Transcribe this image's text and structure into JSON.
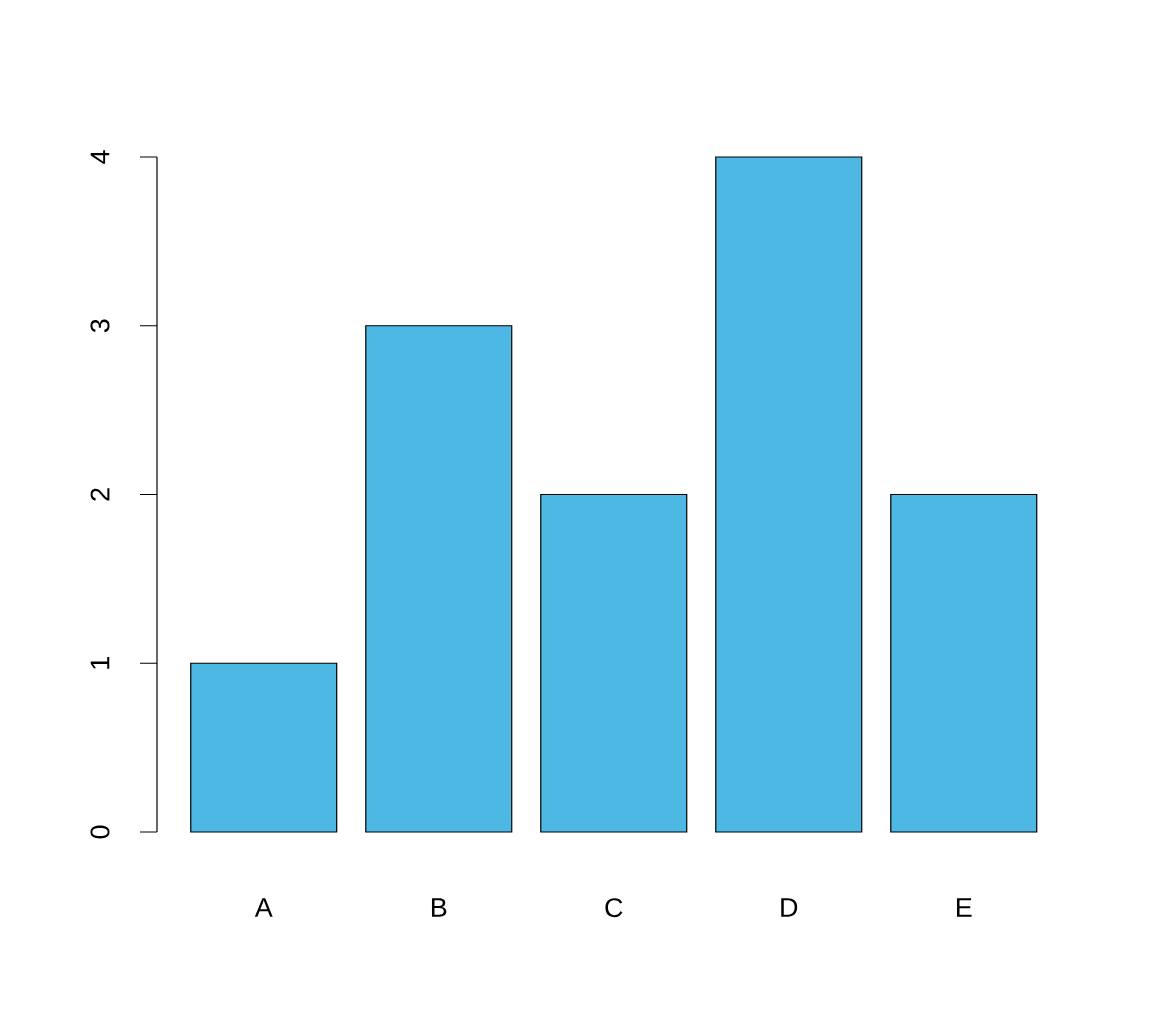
{
  "chart_data": {
    "type": "bar",
    "categories": [
      "A",
      "B",
      "C",
      "D",
      "E"
    ],
    "values": [
      1,
      3,
      2,
      4,
      2
    ],
    "color": "#4eb8e5",
    "ylim": [
      0,
      4
    ],
    "yticks": [
      0,
      1,
      2,
      3,
      4
    ]
  }
}
